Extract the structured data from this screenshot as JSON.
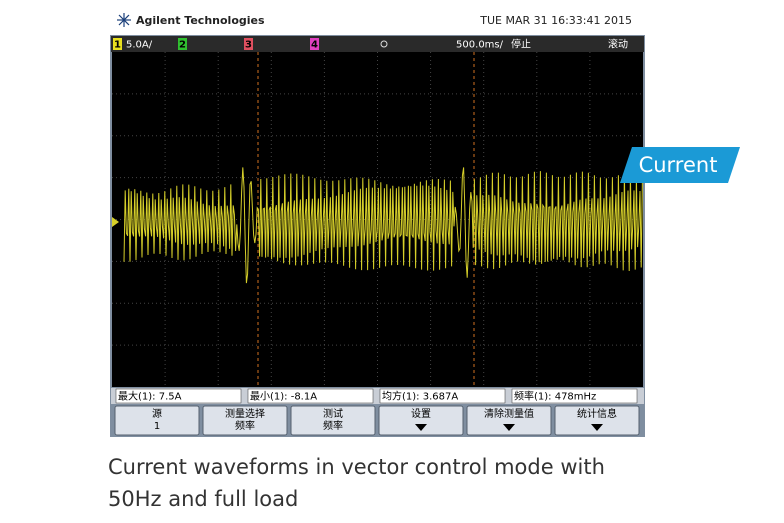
{
  "header": {
    "brand": "Agilent Technologies",
    "datetime": "TUE MAR 31 16:33:41 2015"
  },
  "status_bar": {
    "channels": [
      "1",
      "2",
      "3",
      "4"
    ],
    "scale": "5.0A/",
    "timebase": "500.0ms/",
    "state": "停止",
    "mode": "滚动"
  },
  "measurements": [
    "最大(1): 7.5A",
    "最小(1): -8.1A",
    "均方(1): 3.687A",
    "频率(1): 478mHz"
  ],
  "softkeys": [
    [
      "源",
      "1"
    ],
    [
      "测量选择",
      "频率"
    ],
    [
      "测试",
      "频率"
    ],
    [
      "设置"
    ],
    [
      "清除测量值"
    ],
    [
      "统计信息"
    ]
  ],
  "label": "Current",
  "caption": [
    "Current waveforms in vector control mode with",
    "50Hz and full load"
  ]
}
